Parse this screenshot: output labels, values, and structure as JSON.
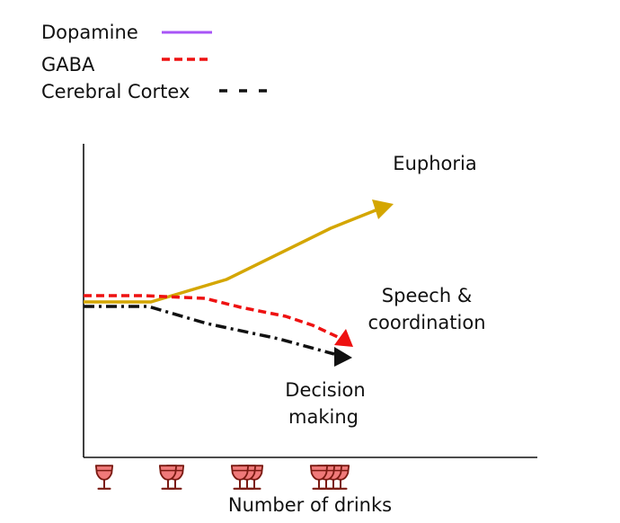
{
  "legend": {
    "items": [
      {
        "label": "Dopamine",
        "color": "#a855f7",
        "style": "solid"
      },
      {
        "label": "GABA",
        "color": "#ee1111",
        "style": "dashed"
      },
      {
        "label": "Cerebral Cortex",
        "color": "#111111",
        "style": "dash-dot"
      }
    ]
  },
  "diagram": {
    "curve_colors": {
      "euphoria": "#d4a600",
      "speech": "#ee1111",
      "decision": "#111111"
    },
    "labels": {
      "euphoria": "Euphoria",
      "speech_line1": "Speech &",
      "speech_line2": "coordination",
      "decision_line1": "Decision",
      "decision_line2": "making"
    },
    "x_axis_label": "Number of drinks",
    "drink_groups": [
      1,
      2,
      3,
      4
    ],
    "icon": "wine-glass-icon",
    "glass_color": "#f07a7a",
    "glass_outline": "#7a1a12"
  }
}
